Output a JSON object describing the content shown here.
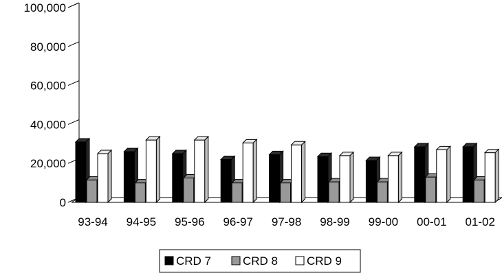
{
  "chart_data": {
    "type": "bar",
    "title": "",
    "xlabel": "",
    "ylabel": "",
    "categories": [
      "93-94",
      "94-95",
      "95-96",
      "96-97",
      "97-98",
      "98-99",
      "99-00",
      "00-01",
      "01-02"
    ],
    "ylim": [
      0,
      100000
    ],
    "yticks": [
      "0",
      "20,000",
      "40,000",
      "60,000",
      "80,000",
      "100,000"
    ],
    "grid": false,
    "legend_position": "bottom",
    "style": "3d-clustered",
    "series": [
      {
        "name": "CRD 7",
        "color": "#000000",
        "values": [
          31000,
          26000,
          25000,
          22000,
          24500,
          23500,
          21500,
          28500,
          28500
        ]
      },
      {
        "name": "CRD 8",
        "color": "#999999",
        "values": [
          11500,
          10000,
          12500,
          10000,
          10000,
          10500,
          10500,
          13000,
          11500
        ]
      },
      {
        "name": "CRD 9",
        "color": "#ffffff",
        "values": [
          25000,
          32000,
          32000,
          30500,
          29500,
          24000,
          24000,
          27000,
          25500
        ]
      }
    ]
  }
}
